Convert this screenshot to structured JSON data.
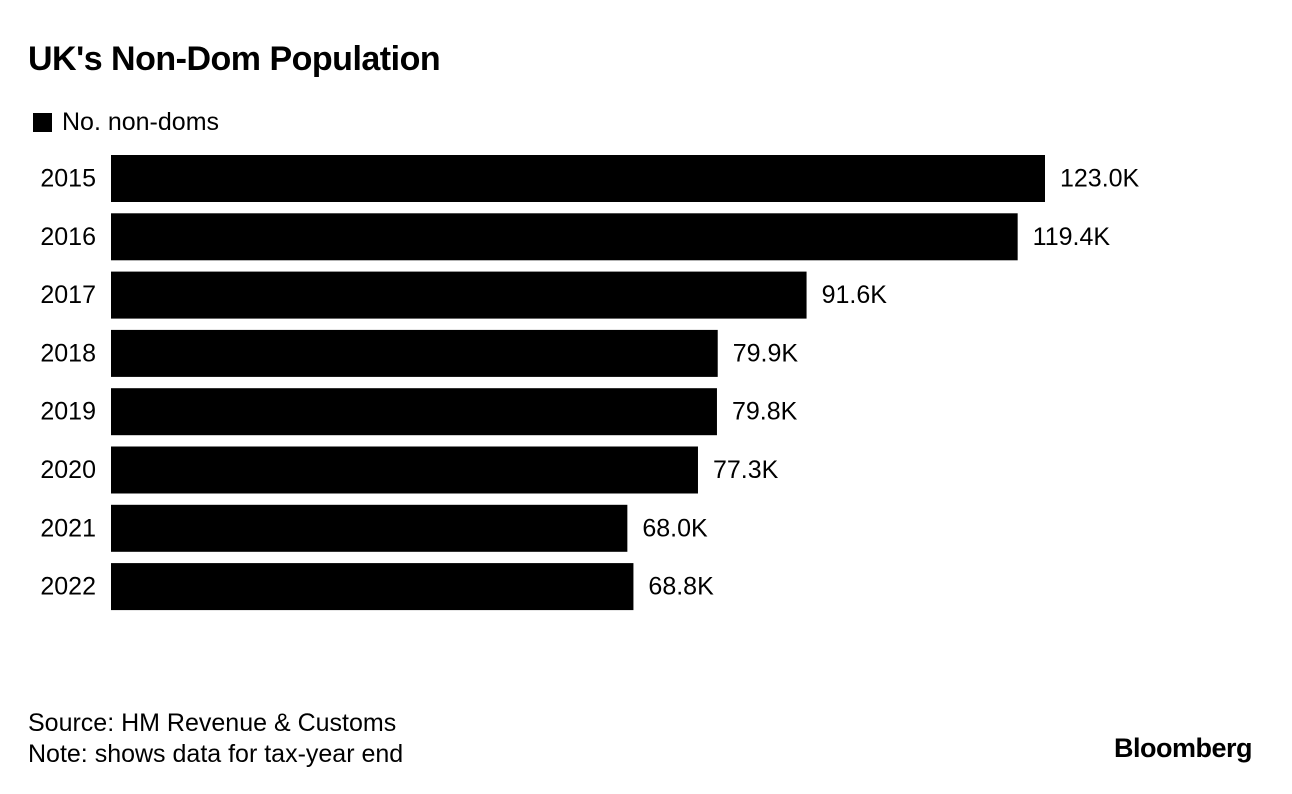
{
  "title": "UK's Non-Dom Population",
  "legend": {
    "label": "No. non-doms",
    "swatch_color": "#000000"
  },
  "chart_data": {
    "type": "bar",
    "orientation": "horizontal",
    "title": "UK's Non-Dom Population",
    "categories": [
      "2015",
      "2016",
      "2017",
      "2018",
      "2019",
      "2020",
      "2021",
      "2022"
    ],
    "series": [
      {
        "name": "No. non-doms",
        "values": [
          123.0,
          119.4,
          91.6,
          79.9,
          79.8,
          77.3,
          68.0,
          68.8
        ],
        "labels": [
          "123.0K",
          "119.4K",
          "91.6K",
          "79.9K",
          "79.8K",
          "77.3K",
          "68.0K",
          "68.8K"
        ],
        "color": "#000000"
      }
    ],
    "unit": "K",
    "xlim": [
      0,
      123.0
    ],
    "grid": false,
    "legend_position": "top-left"
  },
  "footer": {
    "source": "Source: HM Revenue & Customs",
    "note": "Note: shows data for tax-year end"
  },
  "brand": "Bloomberg"
}
